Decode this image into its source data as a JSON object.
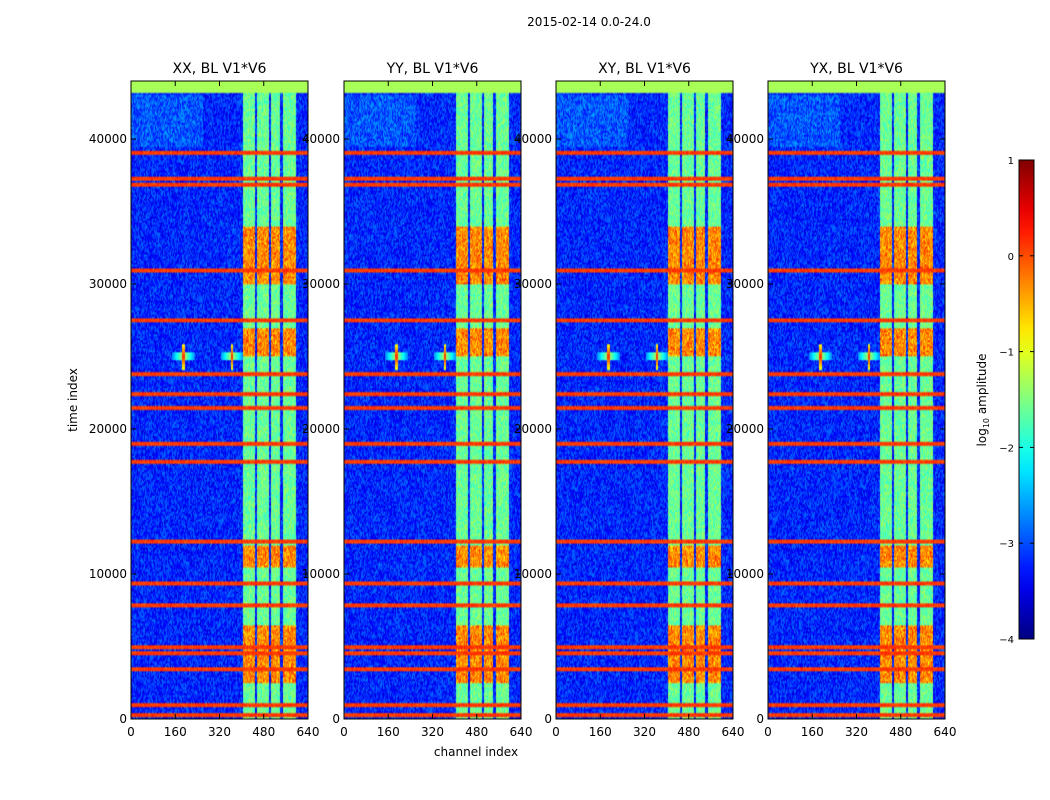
{
  "figure": {
    "suptitle": "2015-02-14 0.0-24.0"
  },
  "chart_data": {
    "type": "heatmap",
    "xlabel": "channel index",
    "ylabel": "time index",
    "xlim": [
      0,
      640
    ],
    "ylim": [
      0,
      44000
    ],
    "x_ticks": [
      0,
      160,
      320,
      480,
      640
    ],
    "y_ticks": [
      0,
      10000,
      20000,
      30000,
      40000
    ],
    "x_tick_labels": [
      "0",
      "160",
      "320",
      "480",
      "640"
    ],
    "y_tick_labels": [
      "0",
      "10000",
      "20000",
      "30000",
      "40000"
    ],
    "panels": [
      {
        "title": "XX, BL V1*V6",
        "key": "xx"
      },
      {
        "title": "YY, BL V1*V6",
        "key": "yy"
      },
      {
        "title": "XY, BL V1*V6",
        "key": "xy"
      },
      {
        "title": "YX, BL V1*V6",
        "key": "yx"
      }
    ],
    "colorbar": {
      "label_prefix": "log",
      "label_subscript": "10",
      "label_suffix": " amplitude",
      "range": [
        -4,
        1
      ],
      "ticks": [
        1,
        0,
        -1,
        -2,
        -3,
        -4
      ],
      "tick_labels": [
        "1",
        "0",
        "−1",
        "−2",
        "−3",
        "−4"
      ],
      "colormap": "jet"
    },
    "features": {
      "background_level": -3.2,
      "rfi_channel_bands": [
        [
          405,
          450
        ],
        [
          455,
          500
        ],
        [
          505,
          540
        ],
        [
          548,
          595
        ]
      ],
      "rfi_channel_level": -1.6,
      "bright_time_ranges": [
        [
          2500,
          6500
        ],
        [
          10500,
          12000
        ],
        [
          25000,
          27000
        ],
        [
          30000,
          34000
        ]
      ],
      "spike_channels": [
        190,
        365
      ],
      "spike_time": 25000,
      "flagged_rows_time": [
        300,
        900,
        3500,
        4500,
        4900,
        7800,
        9400,
        12200,
        17800,
        19000,
        21500,
        22400,
        23800,
        27500,
        31000,
        36800,
        37200,
        39000,
        43700
      ]
    }
  }
}
